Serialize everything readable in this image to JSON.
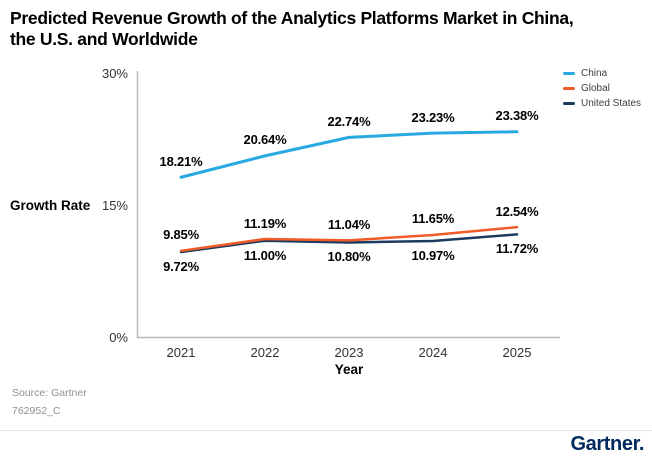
{
  "footer": {
    "source_line1": "Source: Gartner",
    "source_line2": "762952_C",
    "logo_text": "Gartner."
  },
  "chart_data": {
    "type": "line",
    "title": "Predicted Revenue Growth of the Analytics Platforms Market in China,\nthe U.S. and Worldwide",
    "xlabel": "Year",
    "ylabel": "Growth Rate",
    "categories": [
      "2021",
      "2022",
      "2023",
      "2024",
      "2025"
    ],
    "y_ticks": [
      {
        "label": "0%",
        "value": 0
      },
      {
        "label": "15%",
        "value": 15
      },
      {
        "label": "30%",
        "value": 30
      }
    ],
    "ylim": [
      0,
      30
    ],
    "grid": false,
    "legend_position": "top-right",
    "axis_color": "#b9b9b9",
    "series": [
      {
        "name": "China",
        "color": "#29A9E1",
        "values": [
          18.21,
          20.64,
          22.74,
          23.23,
          23.38
        ],
        "labels": [
          "18.21%",
          "20.64%",
          "22.74%",
          "23.23%",
          "23.38%"
        ],
        "label_position": "above"
      },
      {
        "name": "Global",
        "color": "#F05B28",
        "values": [
          9.85,
          11.19,
          11.04,
          11.65,
          12.54
        ],
        "labels": [
          "9.85%",
          "11.19%",
          "11.04%",
          "11.65%",
          "12.54%"
        ],
        "label_position": "above"
      },
      {
        "name": "United States",
        "color": "#1B3A5F",
        "values": [
          9.72,
          11.0,
          10.8,
          10.97,
          11.72
        ],
        "labels": [
          "9.72%",
          "11.00%",
          "10.80%",
          "10.97%",
          "11.72%"
        ],
        "label_position": "below"
      }
    ]
  }
}
